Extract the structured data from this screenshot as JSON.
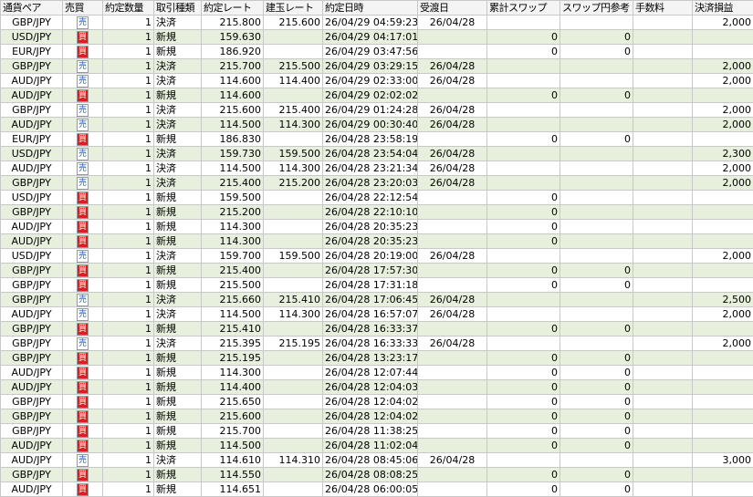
{
  "table": {
    "headers": [
      "通貨ペア",
      "売買",
      "約定数量",
      "取引種類",
      "約定レート",
      "建玉レート",
      "約定日時",
      "受渡日",
      "累計スワップ",
      "スワップ円参考",
      "手数料",
      "決済損益"
    ],
    "rows": [
      [
        "GBP/JPY",
        "売",
        "1",
        "決済",
        "215.800",
        "215.600",
        "26/04/29 04:59:23",
        "26/04/28",
        null,
        null,
        null,
        "2,000"
      ],
      [
        "USD/JPY",
        "買",
        "1",
        "新規",
        "159.630",
        null,
        "26/04/29 04:17:01",
        null,
        "0",
        "0",
        null,
        null
      ],
      [
        "EUR/JPY",
        "買",
        "1",
        "新規",
        "186.920",
        null,
        "26/04/29 03:47:56",
        null,
        "0",
        "0",
        null,
        null
      ],
      [
        "GBP/JPY",
        "売",
        "1",
        "決済",
        "215.700",
        "215.500",
        "26/04/29 03:29:15",
        "26/04/28",
        null,
        null,
        null,
        "2,000"
      ],
      [
        "AUD/JPY",
        "売",
        "1",
        "決済",
        "114.600",
        "114.400",
        "26/04/29 02:33:00",
        "26/04/28",
        null,
        null,
        null,
        "2,000"
      ],
      [
        "AUD/JPY",
        "買",
        "1",
        "新規",
        "114.600",
        null,
        "26/04/29 02:02:02",
        null,
        "0",
        "0",
        null,
        null
      ],
      [
        "GBP/JPY",
        "売",
        "1",
        "決済",
        "215.600",
        "215.400",
        "26/04/29 01:24:28",
        "26/04/28",
        null,
        null,
        null,
        "2,000"
      ],
      [
        "AUD/JPY",
        "売",
        "1",
        "決済",
        "114.500",
        "114.300",
        "26/04/29 00:30:40",
        "26/04/28",
        null,
        null,
        null,
        "2,000"
      ],
      [
        "EUR/JPY",
        "買",
        "1",
        "新規",
        "186.830",
        null,
        "26/04/28 23:58:19",
        null,
        "0",
        "0",
        null,
        null
      ],
      [
        "USD/JPY",
        "売",
        "1",
        "決済",
        "159.730",
        "159.500",
        "26/04/28 23:54:04",
        "26/04/28",
        null,
        null,
        null,
        "2,300"
      ],
      [
        "AUD/JPY",
        "売",
        "1",
        "決済",
        "114.500",
        "114.300",
        "26/04/28 23:21:34",
        "26/04/28",
        null,
        null,
        null,
        "2,000"
      ],
      [
        "GBP/JPY",
        "売",
        "1",
        "決済",
        "215.400",
        "215.200",
        "26/04/28 23:20:03",
        "26/04/28",
        null,
        null,
        null,
        "2,000"
      ],
      [
        "USD/JPY",
        "買",
        "1",
        "新規",
        "159.500",
        null,
        "26/04/28 22:12:54",
        null,
        "0",
        null,
        null,
        null
      ],
      [
        "GBP/JPY",
        "買",
        "1",
        "新規",
        "215.200",
        null,
        "26/04/28 22:10:10",
        null,
        "0",
        null,
        null,
        null
      ],
      [
        "AUD/JPY",
        "買",
        "1",
        "新規",
        "114.300",
        null,
        "26/04/28 20:35:23",
        null,
        "0",
        null,
        null,
        null
      ],
      [
        "AUD/JPY",
        "買",
        "1",
        "新規",
        "114.300",
        null,
        "26/04/28 20:35:23",
        null,
        "0",
        null,
        null,
        null
      ],
      [
        "USD/JPY",
        "売",
        "1",
        "決済",
        "159.700",
        "159.500",
        "26/04/28 20:19:00",
        "26/04/28",
        null,
        null,
        null,
        "2,000"
      ],
      [
        "GBP/JPY",
        "買",
        "1",
        "新規",
        "215.400",
        null,
        "26/04/28 17:57:30",
        null,
        "0",
        "0",
        null,
        null
      ],
      [
        "GBP/JPY",
        "買",
        "1",
        "新規",
        "215.500",
        null,
        "26/04/28 17:31:18",
        null,
        "0",
        "0",
        null,
        null
      ],
      [
        "GBP/JPY",
        "売",
        "1",
        "決済",
        "215.660",
        "215.410",
        "26/04/28 17:06:45",
        "26/04/28",
        null,
        null,
        null,
        "2,500"
      ],
      [
        "AUD/JPY",
        "売",
        "1",
        "決済",
        "114.500",
        "114.300",
        "26/04/28 16:57:07",
        "26/04/28",
        null,
        null,
        null,
        "2,000"
      ],
      [
        "GBP/JPY",
        "買",
        "1",
        "新規",
        "215.410",
        null,
        "26/04/28 16:33:37",
        null,
        "0",
        "0",
        null,
        null
      ],
      [
        "GBP/JPY",
        "売",
        "1",
        "決済",
        "215.395",
        "215.195",
        "26/04/28 16:33:33",
        "26/04/28",
        null,
        null,
        null,
        "2,000"
      ],
      [
        "GBP/JPY",
        "買",
        "1",
        "新規",
        "215.195",
        null,
        "26/04/28 13:23:17",
        null,
        "0",
        "0",
        null,
        null
      ],
      [
        "AUD/JPY",
        "買",
        "1",
        "新規",
        "114.300",
        null,
        "26/04/28 12:07:44",
        null,
        "0",
        "0",
        null,
        null
      ],
      [
        "AUD/JPY",
        "買",
        "1",
        "新規",
        "114.400",
        null,
        "26/04/28 12:04:03",
        null,
        "0",
        "0",
        null,
        null
      ],
      [
        "GBP/JPY",
        "買",
        "1",
        "新規",
        "215.650",
        null,
        "26/04/28 12:04:02",
        null,
        "0",
        "0",
        null,
        null
      ],
      [
        "GBP/JPY",
        "買",
        "1",
        "新規",
        "215.600",
        null,
        "26/04/28 12:04:02",
        null,
        "0",
        "0",
        null,
        null
      ],
      [
        "GBP/JPY",
        "買",
        "1",
        "新規",
        "215.700",
        null,
        "26/04/28 11:38:25",
        null,
        "0",
        "0",
        null,
        null
      ],
      [
        "AUD/JPY",
        "買",
        "1",
        "新規",
        "114.500",
        null,
        "26/04/28 11:02:04",
        null,
        "0",
        "0",
        null,
        null
      ],
      [
        "AUD/JPY",
        "売",
        "1",
        "決済",
        "114.610",
        "114.310",
        "26/04/28 08:45:06",
        "26/04/28",
        null,
        null,
        null,
        "3,000"
      ],
      [
        "GBP/JPY",
        "買",
        "1",
        "新規",
        "114.550",
        null,
        "26/04/28 08:08:25",
        null,
        "0",
        "0",
        null,
        null
      ],
      [
        "AUD/JPY",
        "買",
        "1",
        "新規",
        "114.651",
        null,
        "26/04/28 06:00:05",
        null,
        "0",
        "0",
        null,
        null
      ]
    ]
  }
}
